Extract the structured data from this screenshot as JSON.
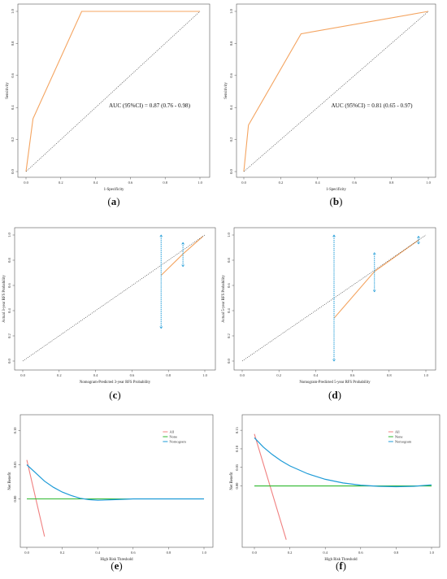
{
  "figure": {
    "panels": [
      {
        "id": "a",
        "caption": "a",
        "chart_data": {
          "type": "line",
          "xlabel": "1-Specificity",
          "ylabel": "Sensitivity",
          "xlim": [
            0,
            1
          ],
          "ylim": [
            0,
            1
          ],
          "xticks": [
            "0.0",
            "0.2",
            "0.4",
            "0.6",
            "0.8",
            "1.0"
          ],
          "yticks": [
            "0.0",
            "0.2",
            "0.4",
            "0.6",
            "0.8",
            "1.0"
          ],
          "annotation": "AUC (95%CI) = 0.87 (0.76 - 0.98)",
          "series": [
            {
              "kind": "roc",
              "color": "#f4a460",
              "x": [
                0,
                0.04,
                0.32,
                1.0
              ],
              "y": [
                0,
                0.33,
                1.0,
                1.0
              ]
            },
            {
              "kind": "reference",
              "color": "#444444",
              "x": [
                0,
                1
              ],
              "y": [
                0,
                1
              ]
            }
          ]
        }
      },
      {
        "id": "b",
        "caption": "b",
        "chart_data": {
          "type": "line",
          "xlabel": "1-Specificity",
          "ylabel": "Sensitivity",
          "xlim": [
            0,
            1
          ],
          "ylim": [
            0,
            1
          ],
          "xticks": [
            "0.0",
            "0.2",
            "0.4",
            "0.6",
            "0.8",
            "1.0"
          ],
          "yticks": [
            "0.0",
            "0.2",
            "0.4",
            "0.6",
            "0.8",
            "1.0"
          ],
          "annotation": "AUC (95%CI) = 0.81 (0.65 - 0.97)",
          "series": [
            {
              "kind": "roc",
              "color": "#f4a460",
              "x": [
                0,
                0.025,
                0.31,
                1.0
              ],
              "y": [
                0,
                0.29,
                0.86,
                1.0
              ]
            },
            {
              "kind": "reference",
              "color": "#444444",
              "x": [
                0,
                1
              ],
              "y": [
                0,
                1
              ]
            }
          ]
        }
      },
      {
        "id": "c",
        "caption": "c",
        "chart_data": {
          "type": "line",
          "xlabel": "Nomogram-Predicted 3-year RFS Probability",
          "ylabel": "Actual 3-year RFS Probability",
          "xlim": [
            0,
            1
          ],
          "ylim": [
            0,
            1
          ],
          "xticks": [
            "0.0",
            "0.2",
            "0.4",
            "0.6",
            "0.8",
            "1.0"
          ],
          "yticks": [
            "0.0",
            "0.2",
            "0.4",
            "0.6",
            "0.8",
            "1.0"
          ],
          "series": [
            {
              "kind": "calibration",
              "color": "#f4a460",
              "x": [
                0.76,
                0.88,
                0.99
              ],
              "y": [
                0.68,
                0.85,
                0.99
              ]
            },
            {
              "kind": "reference",
              "color": "#444444",
              "x": [
                0,
                1
              ],
              "y": [
                0,
                1
              ]
            }
          ],
          "error_bars": [
            {
              "x": 0.76,
              "low": 0.26,
              "high": 1.0
            },
            {
              "x": 0.88,
              "low": 0.75,
              "high": 0.94
            }
          ]
        }
      },
      {
        "id": "d",
        "caption": "d",
        "chart_data": {
          "type": "line",
          "xlabel": "Nomogram-Predicted 5-year RFS Probability",
          "ylabel": "Actual 5-year RFS Probability",
          "xlim": [
            0,
            1
          ],
          "ylim": [
            0,
            1
          ],
          "xticks": [
            "0.0",
            "0.2",
            "0.4",
            "0.6",
            "0.8",
            "1.0"
          ],
          "yticks": [
            "0.0",
            "0.2",
            "0.4",
            "0.6",
            "0.8",
            "1.0"
          ],
          "series": [
            {
              "kind": "calibration",
              "color": "#f4a460",
              "x": [
                0.5,
                0.72,
                0.96
              ],
              "y": [
                0.34,
                0.71,
                0.96
              ]
            },
            {
              "kind": "reference",
              "color": "#444444",
              "x": [
                0,
                1
              ],
              "y": [
                0,
                1
              ]
            }
          ],
          "error_bars": [
            {
              "x": 0.5,
              "low": 0.0,
              "high": 1.0
            },
            {
              "x": 0.72,
              "low": 0.55,
              "high": 0.86
            },
            {
              "x": 0.96,
              "low": 0.93,
              "high": 0.99
            }
          ]
        }
      },
      {
        "id": "e",
        "caption": "e",
        "chart_data": {
          "type": "line",
          "xlabel": "High Risk Threshold",
          "ylabel": "Net Benefit",
          "xlim": [
            0,
            1
          ],
          "ylim": [
            -0.06,
            0.11
          ],
          "xticks": [
            "0.0",
            "0.2",
            "0.4",
            "0.6",
            "0.8",
            "1.0"
          ],
          "yticks": [
            {
              "v": 0,
              "label": "0.00"
            },
            {
              "v": 0.05,
              "label": "0.05"
            },
            {
              "v": 0.1,
              "label": "0.10"
            }
          ],
          "legend": [
            "All",
            "None",
            "Nomogram"
          ],
          "legend_position": "top-right",
          "series": [
            {
              "name": "All",
              "color": "#f08080",
              "x": [
                0,
                0.1
              ],
              "y": [
                0.057,
                -0.055
              ]
            },
            {
              "name": "None",
              "color": "#2eb82e",
              "x": [
                0,
                1
              ],
              "y": [
                0,
                0
              ]
            },
            {
              "name": "Nomogram",
              "color": "#1e9bd7",
              "x": [
                0,
                0.05,
                0.1,
                0.15,
                0.2,
                0.25,
                0.3,
                0.35,
                0.4,
                0.5,
                0.6,
                0.8,
                1.0
              ],
              "y": [
                0.05,
                0.038,
                0.026,
                0.017,
                0.01,
                0.005,
                0.001,
                -0.001,
                -0.002,
                -0.001,
                0,
                0,
                0
              ]
            }
          ]
        }
      },
      {
        "id": "f",
        "caption": "f",
        "chart_data": {
          "type": "line",
          "xlabel": "High Risk Threshold",
          "ylabel": "Net Benefit",
          "xlim": [
            0,
            1
          ],
          "ylim": [
            -0.15,
            0.17
          ],
          "xticks": [
            "0.0",
            "0.2",
            "0.4",
            "0.6",
            "0.8",
            "1.0"
          ],
          "yticks": [
            {
              "v": 0,
              "label": "0.00"
            },
            {
              "v": 0.05,
              "label": "0.05"
            },
            {
              "v": 0.1,
              "label": "0.10"
            },
            {
              "v": 0.15,
              "label": "0.15"
            }
          ],
          "legend": [
            "All",
            "None",
            "Nomogram"
          ],
          "legend_position": "top-right",
          "series": [
            {
              "name": "All",
              "color": "#f08080",
              "x": [
                0,
                0.18
              ],
              "y": [
                0.14,
                -0.145
              ]
            },
            {
              "name": "None",
              "color": "#2eb82e",
              "x": [
                0,
                1
              ],
              "y": [
                0,
                0
              ]
            },
            {
              "name": "Nomogram",
              "color": "#1e9bd7",
              "x": [
                0,
                0.05,
                0.1,
                0.15,
                0.2,
                0.3,
                0.4,
                0.5,
                0.6,
                0.7,
                0.8,
                0.9,
                1.0
              ],
              "y": [
                0.13,
                0.105,
                0.085,
                0.068,
                0.054,
                0.033,
                0.018,
                0.008,
                0.002,
                -0.001,
                -0.002,
                -0.001,
                0.003
              ]
            }
          ]
        }
      }
    ]
  }
}
